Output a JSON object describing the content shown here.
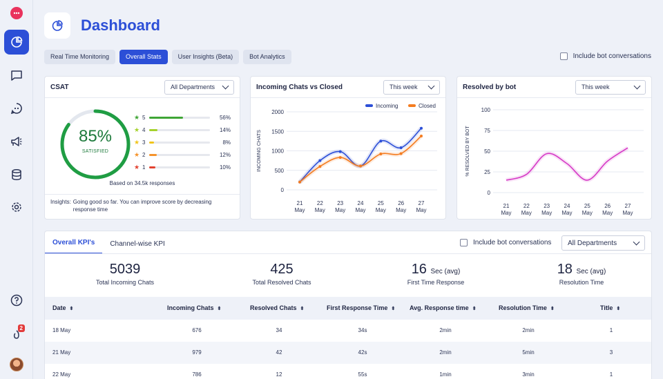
{
  "header": {
    "title": "Dashboard"
  },
  "tabs": [
    {
      "label": "Real Time Monitoring",
      "active": false
    },
    {
      "label": "Overall Stats",
      "active": true
    },
    {
      "label": "User Insights (Beta)",
      "active": false
    },
    {
      "label": "Bot Analytics",
      "active": false
    }
  ],
  "include_bot_label": "Include bot conversations",
  "sidebar": {
    "icons": [
      "logo-icon",
      "dashboard-icon",
      "chat-icon",
      "bot-icon",
      "megaphone-icon",
      "database-icon",
      "settings-icon",
      "help-icon",
      "notification-icon",
      "avatar"
    ],
    "notification_count": "2"
  },
  "csat": {
    "title": "CSAT",
    "department": "All Departments",
    "score": "85%",
    "score_value": 85,
    "score_label": "SATISFIED",
    "ratings": [
      {
        "stars": "5",
        "pct": "56%",
        "value": 56,
        "color": "#3fa535"
      },
      {
        "stars": "4",
        "pct": "14%",
        "value": 14,
        "color": "#a5d22c"
      },
      {
        "stars": "3",
        "pct": "8%",
        "value": 8,
        "color": "#f0c419"
      },
      {
        "stars": "2",
        "pct": "12%",
        "value": 12,
        "color": "#f5932b"
      },
      {
        "stars": "1",
        "pct": "10%",
        "value": 10,
        "color": "#e2412f"
      }
    ],
    "based_on": "Based on 34.5k responses",
    "insights_label": "Insights:",
    "insights_text": "Going good so far. You can improve score by decreasing response time"
  },
  "incoming_chart": {
    "title": "Incoming Chats vs Closed",
    "period": "This week"
  },
  "bot_chart": {
    "title": "Resolved by bot",
    "period": "This week"
  },
  "chart_data": [
    {
      "type": "line",
      "title": "Incoming Chats vs Closed",
      "ylabel": "INCOMING CHATS",
      "x": [
        "21 May",
        "22 May",
        "23 May",
        "24 May",
        "25 May",
        "26 May",
        "27 May"
      ],
      "ylim": [
        0,
        2000
      ],
      "yticks": [
        0,
        500,
        1000,
        1500,
        2000
      ],
      "legend": "top-right",
      "series": [
        {
          "name": "Incoming",
          "color": "#2c4fd7",
          "values": [
            200,
            750,
            980,
            610,
            1250,
            1080,
            1580
          ]
        },
        {
          "name": "Closed",
          "color": "#f47c20",
          "values": [
            200,
            600,
            830,
            610,
            920,
            930,
            1380
          ]
        }
      ]
    },
    {
      "type": "line",
      "title": "Resolved by bot",
      "ylabel": "% RESOLVED BY BOT",
      "x": [
        "21 May",
        "22 May",
        "23 May",
        "24 May",
        "25 May",
        "26 May",
        "27 May"
      ],
      "ylim": [
        0,
        100
      ],
      "yticks": [
        0,
        25,
        50,
        75,
        100
      ],
      "series": [
        {
          "color": "#d63ac6",
          "values": [
            15,
            22,
            47,
            35,
            15,
            38,
            54
          ]
        }
      ]
    }
  ],
  "kpi": {
    "tabs": [
      {
        "label": "Overall KPI's",
        "active": true
      },
      {
        "label": "Channel-wise KPI",
        "active": false
      }
    ],
    "department": "All Departments",
    "stats": [
      {
        "value": "5039",
        "unit": "",
        "caption": "Total Incoming Chats"
      },
      {
        "value": "425",
        "unit": "",
        "caption": "Total Resolved Chats"
      },
      {
        "value": "16",
        "unit": "Sec (avg)",
        "caption": "First Time Response"
      },
      {
        "value": "18",
        "unit": "Sec (avg)",
        "caption": "Resolution Time"
      }
    ],
    "columns": [
      "Date",
      "Incoming Chats",
      "Resolved Chats",
      "First Response Time",
      "Avg. Response time",
      "Resolution Time",
      "Title"
    ],
    "sort_glyph": "⬍",
    "rows": [
      [
        "18 May",
        "676",
        "34",
        "34s",
        "2min",
        "2min",
        "1"
      ],
      [
        "21 May",
        "979",
        "42",
        "42s",
        "2min",
        "5min",
        "3"
      ],
      [
        "22 May",
        "786",
        "12",
        "55s",
        "1min",
        "3min",
        "1"
      ]
    ]
  }
}
